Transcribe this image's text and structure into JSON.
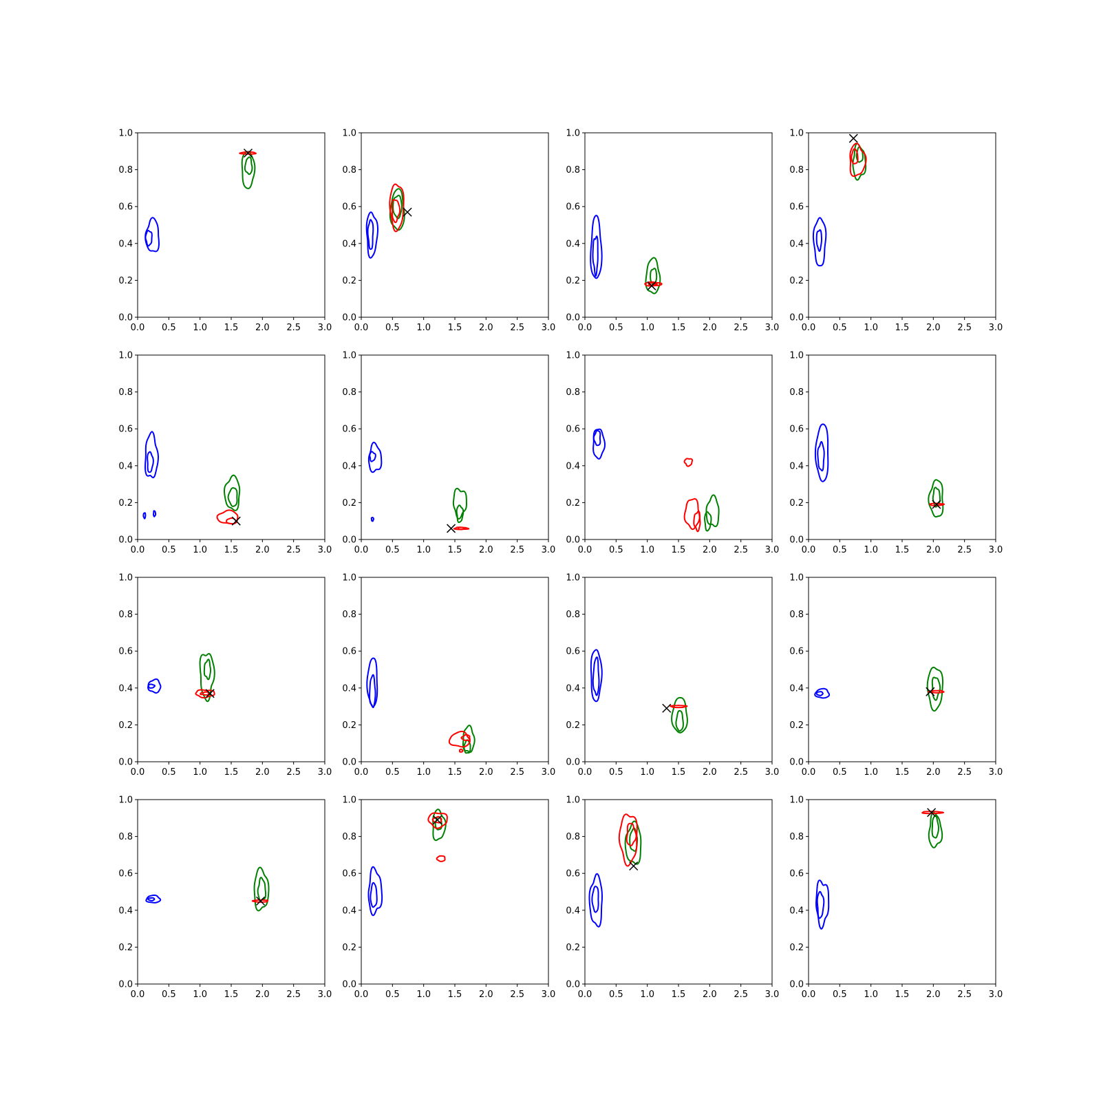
{
  "chart_data": {
    "type": "contour",
    "layout": {
      "rows": 4,
      "cols": 4
    },
    "xlim": [
      0,
      3
    ],
    "ylim": [
      0,
      1
    ],
    "xticks": [
      "0.0",
      "0.5",
      "1.0",
      "1.5",
      "2.0",
      "2.5",
      "3.0"
    ],
    "yticks": [
      "0.0",
      "0.2",
      "0.4",
      "0.6",
      "0.8",
      "1.0"
    ],
    "grid": false,
    "colors": {
      "blue": "#0000ff",
      "green": "#008000",
      "red": "#ff0000",
      "marker": "#000000"
    },
    "panels": [
      {
        "blue": [
          [
            0.24,
            0.44,
            0.21,
            0.18
          ],
          [
            0.18,
            0.43,
            0.1,
            0.08
          ]
        ],
        "green": [
          [
            1.77,
            0.8,
            0.2,
            0.2
          ],
          [
            1.78,
            0.82,
            0.11,
            0.09
          ]
        ],
        "red": [
          [
            1.77,
            0.89,
            0.25,
            0.005
          ]
        ],
        "marker": [
          1.77,
          0.89
        ]
      },
      {
        "blue": [
          [
            0.17,
            0.45,
            0.17,
            0.24
          ],
          [
            0.15,
            0.45,
            0.08,
            0.16
          ]
        ],
        "green": [
          [
            0.58,
            0.58,
            0.22,
            0.22
          ],
          [
            0.58,
            0.6,
            0.14,
            0.12
          ]
        ],
        "red": [
          [
            0.57,
            0.6,
            0.22,
            0.25
          ],
          [
            0.55,
            0.58,
            0.12,
            0.12
          ]
        ],
        "marker": [
          0.74,
          0.57
        ]
      },
      {
        "blue": [
          [
            0.18,
            0.37,
            0.17,
            0.34
          ],
          [
            0.17,
            0.34,
            0.08,
            0.2
          ]
        ],
        "green": [
          [
            1.09,
            0.22,
            0.22,
            0.19
          ],
          [
            1.1,
            0.22,
            0.1,
            0.09
          ]
        ],
        "red": [
          [
            1.09,
            0.18,
            0.27,
            0.02
          ],
          [
            1.09,
            0.18,
            0.13,
            0.01
          ]
        ],
        "marker": [
          1.07,
          0.17
        ]
      },
      {
        "blue": [
          [
            0.18,
            0.41,
            0.19,
            0.26
          ],
          [
            0.17,
            0.42,
            0.08,
            0.11
          ]
        ],
        "green": [
          [
            0.81,
            0.84,
            0.2,
            0.18
          ],
          [
            0.82,
            0.88,
            0.1,
            0.08
          ]
        ],
        "red": [
          [
            0.78,
            0.85,
            0.25,
            0.17
          ],
          [
            0.74,
            0.87,
            0.1,
            0.08
          ]
        ],
        "marker": [
          0.72,
          0.97
        ]
      },
      {
        "blue": [
          [
            0.22,
            0.45,
            0.2,
            0.24
          ],
          [
            0.2,
            0.42,
            0.09,
            0.11
          ],
          [
            0.11,
            0.13,
            0.03,
            0.03
          ],
          [
            0.27,
            0.14,
            0.02,
            0.03
          ]
        ],
        "green": [
          [
            1.52,
            0.25,
            0.24,
            0.18
          ],
          [
            1.53,
            0.23,
            0.14,
            0.1
          ]
        ],
        "red": [
          [
            1.45,
            0.12,
            0.33,
            0.07
          ],
          [
            1.5,
            0.1,
            0.15,
            0.03
          ]
        ],
        "marker": [
          1.58,
          0.1
        ]
      },
      {
        "blue": [
          [
            0.22,
            0.44,
            0.2,
            0.15
          ],
          [
            0.18,
            0.45,
            0.09,
            0.05
          ],
          [
            0.18,
            0.11,
            0.02,
            0.02
          ]
        ],
        "green": [
          [
            1.58,
            0.2,
            0.21,
            0.15
          ],
          [
            1.58,
            0.14,
            0.1,
            0.09
          ]
        ],
        "red": [
          [
            1.6,
            0.06,
            0.22,
            0.01
          ],
          [
            1.6,
            0.06,
            0.1,
            0.005
          ]
        ],
        "marker": [
          1.44,
          0.06
        ]
      },
      {
        "blue": [
          [
            0.22,
            0.52,
            0.18,
            0.16
          ],
          [
            0.2,
            0.55,
            0.1,
            0.08
          ],
          [
            0.0,
            0.0,
            0.0,
            0.0
          ]
        ],
        "green": [
          [
            2.05,
            0.15,
            0.2,
            0.16
          ],
          [
            1.97,
            0.1,
            0.1,
            0.1
          ]
        ],
        "red": [
          [
            1.72,
            0.14,
            0.23,
            0.16
          ],
          [
            1.8,
            0.1,
            0.1,
            0.1
          ],
          [
            1.66,
            0.42,
            0.12,
            0.04
          ]
        ],
        "marker": null
      },
      {
        "blue": [
          [
            0.22,
            0.47,
            0.2,
            0.31
          ],
          [
            0.2,
            0.45,
            0.1,
            0.15
          ]
        ],
        "green": [
          [
            2.05,
            0.22,
            0.22,
            0.2
          ],
          [
            2.05,
            0.23,
            0.11,
            0.1
          ]
        ],
        "red": [
          [
            2.05,
            0.19,
            0.22,
            0.005
          ]
        ],
        "marker": [
          2.05,
          0.19
        ]
      },
      {
        "blue": [
          [
            0.27,
            0.41,
            0.2,
            0.07
          ],
          [
            0.22,
            0.41,
            0.1,
            0.02
          ]
        ],
        "green": [
          [
            1.11,
            0.47,
            0.22,
            0.25
          ],
          [
            1.12,
            0.5,
            0.1,
            0.1
          ]
        ],
        "red": [
          [
            1.08,
            0.37,
            0.3,
            0.04
          ],
          [
            1.08,
            0.37,
            0.14,
            0.015
          ]
        ],
        "marker": [
          1.16,
          0.37
        ]
      },
      {
        "blue": [
          [
            0.18,
            0.43,
            0.16,
            0.26
          ],
          [
            0.18,
            0.38,
            0.09,
            0.17
          ]
        ],
        "green": [
          [
            1.72,
            0.12,
            0.18,
            0.14
          ],
          [
            1.7,
            0.08,
            0.1,
            0.07
          ]
        ],
        "red": [
          [
            1.58,
            0.12,
            0.32,
            0.08
          ],
          [
            1.68,
            0.13,
            0.13,
            0.03
          ],
          [
            1.6,
            0.06,
            0.05,
            0.015
          ]
        ],
        "marker": null
      },
      {
        "blue": [
          [
            0.18,
            0.47,
            0.17,
            0.28
          ],
          [
            0.18,
            0.46,
            0.09,
            0.2
          ]
        ],
        "green": [
          [
            1.52,
            0.25,
            0.24,
            0.19
          ],
          [
            1.52,
            0.22,
            0.11,
            0.11
          ]
        ],
        "red": [
          [
            1.5,
            0.3,
            0.25,
            0.005
          ]
        ],
        "marker": [
          1.31,
          0.29
        ]
      },
      {
        "blue": [
          [
            0.22,
            0.37,
            0.22,
            0.05
          ],
          [
            0.18,
            0.37,
            0.1,
            0.02
          ]
        ],
        "green": [
          [
            2.03,
            0.4,
            0.24,
            0.23
          ],
          [
            2.04,
            0.4,
            0.12,
            0.12
          ]
        ],
        "red": [
          [
            2.05,
            0.38,
            0.24,
            0.005
          ]
        ],
        "marker": [
          1.95,
          0.38
        ]
      },
      {
        "blue": [
          [
            0.25,
            0.46,
            0.22,
            0.04
          ],
          [
            0.22,
            0.46,
            0.1,
            0.015
          ]
        ],
        "green": [
          [
            1.98,
            0.51,
            0.23,
            0.22
          ],
          [
            1.99,
            0.51,
            0.12,
            0.12
          ]
        ],
        "red": [
          [
            1.97,
            0.45,
            0.24,
            0.005
          ]
        ],
        "marker": [
          1.97,
          0.45
        ]
      },
      {
        "blue": [
          [
            0.22,
            0.5,
            0.21,
            0.24
          ],
          [
            0.2,
            0.48,
            0.1,
            0.13
          ]
        ],
        "green": [
          [
            1.24,
            0.86,
            0.2,
            0.16
          ],
          [
            1.24,
            0.87,
            0.1,
            0.07
          ]
        ],
        "red": [
          [
            1.23,
            0.89,
            0.3,
            0.08
          ],
          [
            1.22,
            0.89,
            0.14,
            0.03
          ],
          [
            1.28,
            0.68,
            0.13,
            0.03
          ]
        ],
        "marker": [
          1.22,
          0.89
        ]
      },
      {
        "blue": [
          [
            0.18,
            0.45,
            0.2,
            0.27
          ],
          [
            0.17,
            0.46,
            0.1,
            0.14
          ]
        ],
        "green": [
          [
            0.78,
            0.76,
            0.25,
            0.22
          ],
          [
            0.78,
            0.78,
            0.12,
            0.12
          ]
        ],
        "red": [
          [
            0.7,
            0.79,
            0.28,
            0.27
          ],
          [
            0.74,
            0.81,
            0.14,
            0.12
          ]
        ],
        "marker": [
          0.78,
          0.64
        ]
      },
      {
        "blue": [
          [
            0.22,
            0.44,
            0.2,
            0.24
          ],
          [
            0.19,
            0.43,
            0.1,
            0.14
          ]
        ],
        "green": [
          [
            2.03,
            0.83,
            0.2,
            0.18
          ],
          [
            2.03,
            0.85,
            0.1,
            0.12
          ]
        ],
        "red": [
          [
            1.98,
            0.93,
            0.33,
            0.005
          ]
        ],
        "marker": [
          1.97,
          0.93
        ]
      }
    ]
  }
}
